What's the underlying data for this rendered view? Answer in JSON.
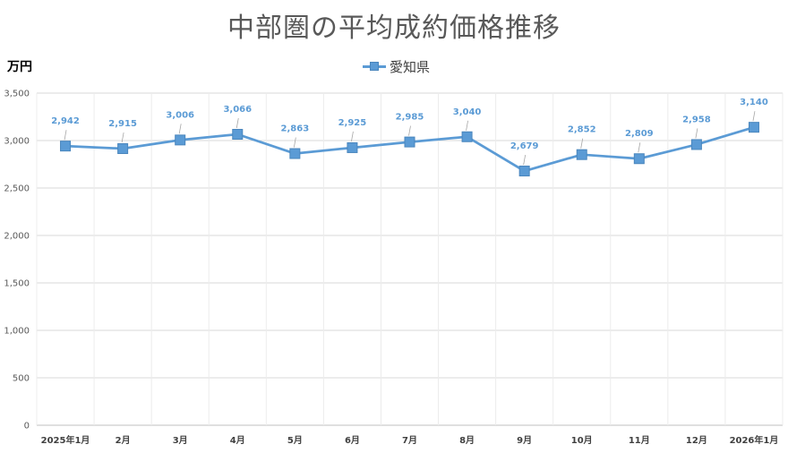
{
  "chart_data": {
    "type": "line",
    "title": "中部圏の平均成約価格推移",
    "ylabel": "万円",
    "xlabel": "",
    "legend_position": "top-center",
    "grid": true,
    "categories": [
      "2025年1月",
      "2月",
      "3月",
      "4月",
      "5月",
      "6月",
      "7月",
      "8月",
      "9月",
      "10月",
      "11月",
      "12月",
      "2026年1月"
    ],
    "series": [
      {
        "name": "愛知県",
        "values": [
          2942,
          2915,
          3006,
          3066,
          2863,
          2925,
          2985,
          3040,
          2679,
          2852,
          2809,
          2958,
          3140
        ],
        "labels": [
          "2,942",
          "2,915",
          "3,006",
          "3,066",
          "2,863",
          "2,925",
          "2,985",
          "3,040",
          "2,679",
          "2,852",
          "2,809",
          "2,958",
          "3,140"
        ]
      }
    ],
    "ylim": [
      0,
      3500
    ],
    "yticks": [
      0,
      500,
      1000,
      1500,
      2000,
      2500,
      3000,
      3500
    ],
    "ytick_labels": [
      "0",
      "500",
      "1,000",
      "1,500",
      "2,000",
      "2,500",
      "3,000",
      "3,500"
    ],
    "colors": {
      "series": "#5B9BD5",
      "grid": "#d9d9d9",
      "title": "#595959"
    }
  }
}
